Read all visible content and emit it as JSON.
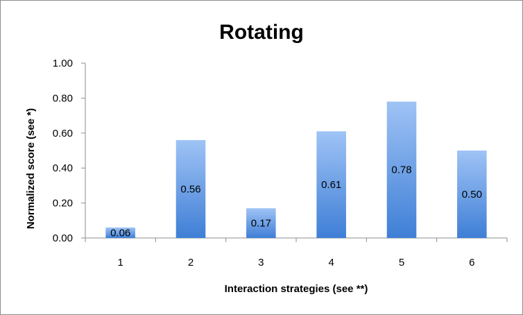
{
  "chart_data": {
    "type": "bar",
    "title": "Rotating",
    "xlabel": "Interaction strategies (see **)",
    "ylabel": "Normalized score (see *)",
    "categories": [
      "1",
      "2",
      "3",
      "4",
      "5",
      "6"
    ],
    "values": [
      0.06,
      0.56,
      0.17,
      0.61,
      0.78,
      0.5
    ],
    "data_labels": [
      "0.06",
      "0.56",
      "0.17",
      "0.61",
      "0.78",
      "0.50"
    ],
    "ylim": [
      0,
      1
    ],
    "yticks": [
      "0.00",
      "0.20",
      "0.40",
      "0.60",
      "0.80",
      "1.00"
    ],
    "grid": false,
    "legend": "none",
    "bar_color_top": "#9fc3f5",
    "bar_color_bottom": "#3f7fd6"
  }
}
